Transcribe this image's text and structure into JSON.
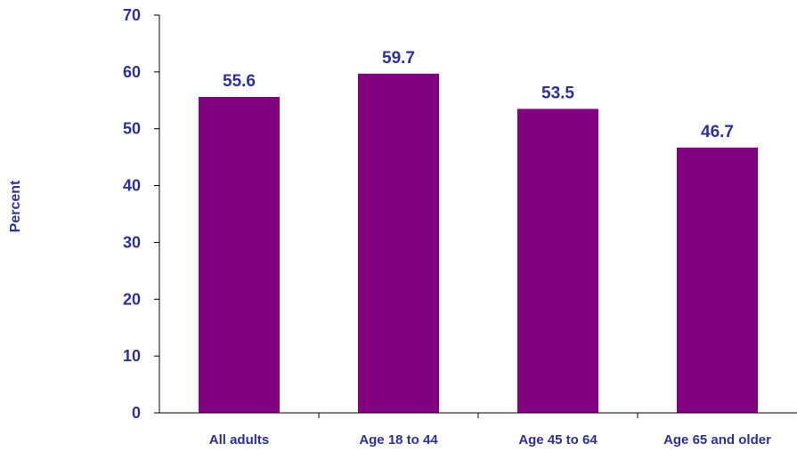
{
  "colors": {
    "bar": "#800080",
    "axis_text": "#2E3192",
    "axis_line": "#000000"
  },
  "chart_data": {
    "type": "bar",
    "categories": [
      "All adults",
      "Age 18 to 44",
      "Age 45 to 64",
      "Age 65 and older"
    ],
    "values": [
      55.6,
      59.7,
      53.5,
      46.7
    ],
    "data_labels": [
      "55.6",
      "59.7",
      "53.5",
      "46.7"
    ],
    "title": "",
    "xlabel": "",
    "ylabel": "Percent",
    "ylim": [
      0,
      70
    ],
    "yticks": [
      0,
      10,
      20,
      30,
      40,
      50,
      60,
      70
    ],
    "ytick_labels": [
      "0",
      "10",
      "20",
      "30",
      "40",
      "50",
      "60",
      "70"
    ],
    "grid": false,
    "legend": "none"
  }
}
